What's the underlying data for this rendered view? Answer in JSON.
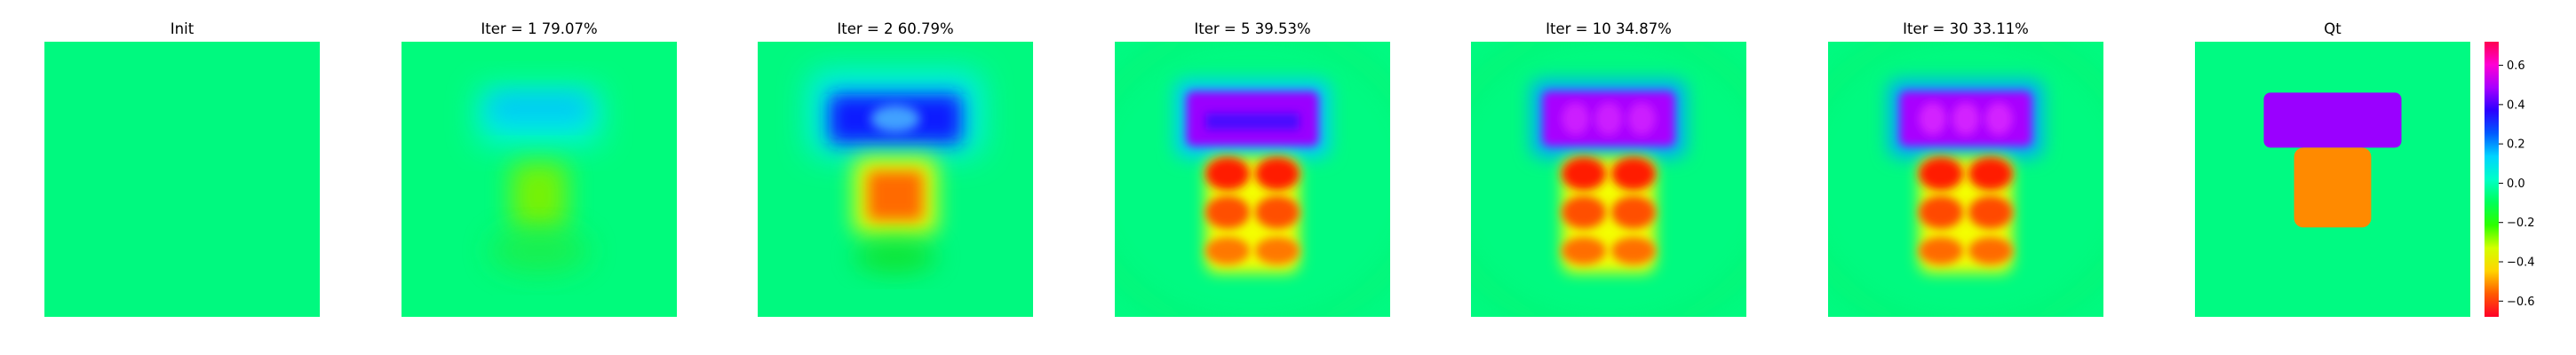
{
  "chart_data": {
    "type": "heatmap",
    "colormap": "hsv",
    "panels": [
      {
        "title": "Init",
        "background": "#00f97f",
        "blobs": []
      },
      {
        "title": "Iter = 1    79.07%",
        "background": "#00fb7c",
        "blobs": [
          {
            "kind": "rect",
            "cx": 0.5,
            "cy": 0.27,
            "w": 0.44,
            "h": 0.2,
            "fill": "#00f0ff",
            "blur": 18,
            "opacity": 0.8
          },
          {
            "kind": "rect",
            "cx": 0.5,
            "cy": 0.24,
            "w": 0.36,
            "h": 0.1,
            "fill": "#00b8ff",
            "blur": 14,
            "opacity": 0.75
          },
          {
            "kind": "rect",
            "cx": 0.5,
            "cy": 0.56,
            "w": 0.2,
            "h": 0.24,
            "fill": "#7df200",
            "blur": 14,
            "opacity": 0.95
          },
          {
            "kind": "ellipse",
            "cx": 0.5,
            "cy": 0.76,
            "rx": 0.18,
            "ry": 0.08,
            "fill": "#2be832",
            "blur": 16,
            "opacity": 0.6
          }
        ]
      },
      {
        "title": "Iter = 2    60.79%",
        "background": "#00f97f",
        "blobs": [
          {
            "kind": "rect",
            "cx": 0.5,
            "cy": 0.26,
            "w": 0.62,
            "h": 0.3,
            "fill": "#00e8ff",
            "blur": 18,
            "opacity": 0.9
          },
          {
            "kind": "rect",
            "cx": 0.5,
            "cy": 0.28,
            "w": 0.48,
            "h": 0.18,
            "fill": "#0c1cff",
            "blur": 10,
            "opacity": 1
          },
          {
            "kind": "ellipse",
            "cx": 0.5,
            "cy": 0.28,
            "rx": 0.09,
            "ry": 0.05,
            "fill": "#46b0ff",
            "blur": 6,
            "opacity": 0.9
          },
          {
            "kind": "rect",
            "cx": 0.5,
            "cy": 0.56,
            "w": 0.3,
            "h": 0.28,
            "fill": "#e8ff00",
            "blur": 12,
            "opacity": 1
          },
          {
            "kind": "rect",
            "cx": 0.5,
            "cy": 0.56,
            "w": 0.2,
            "h": 0.18,
            "fill": "#ff6a00",
            "blur": 8,
            "opacity": 1
          },
          {
            "kind": "ellipse",
            "cx": 0.5,
            "cy": 0.78,
            "rx": 0.15,
            "ry": 0.06,
            "fill": "#1cd700",
            "blur": 14,
            "opacity": 0.6
          }
        ]
      },
      {
        "title": "Iter = 5    39.53%",
        "background": "#00fa82",
        "blobs": [
          {
            "kind": "ring",
            "cx": 0.5,
            "cy": 0.5,
            "rx": 0.62,
            "ry": 0.55,
            "fill": "#18e44a",
            "blur": 14,
            "opacity": 0.35
          },
          {
            "kind": "rect",
            "cx": 0.5,
            "cy": 0.28,
            "w": 0.56,
            "h": 0.28,
            "fill": "#00c8ff",
            "blur": 10,
            "opacity": 1
          },
          {
            "kind": "rect",
            "cx": 0.5,
            "cy": 0.28,
            "w": 0.48,
            "h": 0.2,
            "fill": "#9a00ff",
            "blur": 5,
            "opacity": 1
          },
          {
            "kind": "rect",
            "cx": 0.5,
            "cy": 0.29,
            "w": 0.34,
            "h": 0.06,
            "fill": "#4010ff",
            "blur": 5,
            "opacity": 0.9
          },
          {
            "kind": "rect",
            "cx": 0.5,
            "cy": 0.63,
            "w": 0.34,
            "h": 0.42,
            "fill": "#f4ff00",
            "blur": 8,
            "opacity": 1
          },
          {
            "kind": "ellipse",
            "cx": 0.41,
            "cy": 0.48,
            "rx": 0.08,
            "ry": 0.06,
            "fill": "#ff1e00",
            "blur": 5,
            "opacity": 1
          },
          {
            "kind": "ellipse",
            "cx": 0.59,
            "cy": 0.48,
            "rx": 0.08,
            "ry": 0.06,
            "fill": "#ff1e00",
            "blur": 5,
            "opacity": 1
          },
          {
            "kind": "ellipse",
            "cx": 0.41,
            "cy": 0.62,
            "rx": 0.08,
            "ry": 0.06,
            "fill": "#ff5000",
            "blur": 5,
            "opacity": 1
          },
          {
            "kind": "ellipse",
            "cx": 0.59,
            "cy": 0.62,
            "rx": 0.08,
            "ry": 0.06,
            "fill": "#ff5000",
            "blur": 5,
            "opacity": 1
          },
          {
            "kind": "ellipse",
            "cx": 0.41,
            "cy": 0.76,
            "rx": 0.08,
            "ry": 0.05,
            "fill": "#ff7800",
            "blur": 5,
            "opacity": 1
          },
          {
            "kind": "ellipse",
            "cx": 0.59,
            "cy": 0.76,
            "rx": 0.08,
            "ry": 0.05,
            "fill": "#ff7800",
            "blur": 5,
            "opacity": 1
          }
        ]
      },
      {
        "title": "Iter = 10    34.87%",
        "background": "#00fa80",
        "blobs": [
          {
            "kind": "ring",
            "cx": 0.5,
            "cy": 0.5,
            "rx": 0.62,
            "ry": 0.55,
            "fill": "#18e44a",
            "blur": 14,
            "opacity": 0.35
          },
          {
            "kind": "rect",
            "cx": 0.5,
            "cy": 0.28,
            "w": 0.56,
            "h": 0.28,
            "fill": "#00a8ff",
            "blur": 10,
            "opacity": 1
          },
          {
            "kind": "rect",
            "cx": 0.5,
            "cy": 0.28,
            "w": 0.48,
            "h": 0.2,
            "fill": "#a800ff",
            "blur": 5,
            "opacity": 1
          },
          {
            "kind": "ellipse",
            "cx": 0.38,
            "cy": 0.28,
            "rx": 0.05,
            "ry": 0.06,
            "fill": "#d020ff",
            "blur": 5,
            "opacity": 0.9
          },
          {
            "kind": "ellipse",
            "cx": 0.5,
            "cy": 0.28,
            "rx": 0.05,
            "ry": 0.06,
            "fill": "#d020ff",
            "blur": 5,
            "opacity": 0.9
          },
          {
            "kind": "ellipse",
            "cx": 0.62,
            "cy": 0.28,
            "rx": 0.05,
            "ry": 0.06,
            "fill": "#d020ff",
            "blur": 5,
            "opacity": 0.9
          },
          {
            "kind": "rect",
            "cx": 0.5,
            "cy": 0.63,
            "w": 0.34,
            "h": 0.42,
            "fill": "#f4ff00",
            "blur": 8,
            "opacity": 1
          },
          {
            "kind": "ellipse",
            "cx": 0.41,
            "cy": 0.48,
            "rx": 0.08,
            "ry": 0.06,
            "fill": "#ff1e00",
            "blur": 5,
            "opacity": 1
          },
          {
            "kind": "ellipse",
            "cx": 0.59,
            "cy": 0.48,
            "rx": 0.08,
            "ry": 0.06,
            "fill": "#ff1e00",
            "blur": 5,
            "opacity": 1
          },
          {
            "kind": "ellipse",
            "cx": 0.41,
            "cy": 0.62,
            "rx": 0.08,
            "ry": 0.06,
            "fill": "#ff5000",
            "blur": 5,
            "opacity": 1
          },
          {
            "kind": "ellipse",
            "cx": 0.59,
            "cy": 0.62,
            "rx": 0.08,
            "ry": 0.06,
            "fill": "#ff5000",
            "blur": 5,
            "opacity": 1
          },
          {
            "kind": "ellipse",
            "cx": 0.41,
            "cy": 0.76,
            "rx": 0.08,
            "ry": 0.05,
            "fill": "#ff6e00",
            "blur": 5,
            "opacity": 1
          },
          {
            "kind": "ellipse",
            "cx": 0.59,
            "cy": 0.76,
            "rx": 0.08,
            "ry": 0.05,
            "fill": "#ff6e00",
            "blur": 5,
            "opacity": 1
          }
        ]
      },
      {
        "title": "Iter = 30    33.11%",
        "background": "#00fa80",
        "blobs": [
          {
            "kind": "ring",
            "cx": 0.5,
            "cy": 0.5,
            "rx": 0.62,
            "ry": 0.55,
            "fill": "#18e44a",
            "blur": 14,
            "opacity": 0.35
          },
          {
            "kind": "rect",
            "cx": 0.5,
            "cy": 0.28,
            "w": 0.56,
            "h": 0.28,
            "fill": "#00a8ff",
            "blur": 10,
            "opacity": 1
          },
          {
            "kind": "rect",
            "cx": 0.5,
            "cy": 0.28,
            "w": 0.48,
            "h": 0.2,
            "fill": "#a800ff",
            "blur": 5,
            "opacity": 1
          },
          {
            "kind": "ellipse",
            "cx": 0.38,
            "cy": 0.28,
            "rx": 0.05,
            "ry": 0.06,
            "fill": "#d828ff",
            "blur": 5,
            "opacity": 0.9
          },
          {
            "kind": "ellipse",
            "cx": 0.5,
            "cy": 0.28,
            "rx": 0.05,
            "ry": 0.06,
            "fill": "#d828ff",
            "blur": 5,
            "opacity": 0.9
          },
          {
            "kind": "ellipse",
            "cx": 0.62,
            "cy": 0.28,
            "rx": 0.05,
            "ry": 0.06,
            "fill": "#d828ff",
            "blur": 5,
            "opacity": 0.9
          },
          {
            "kind": "rect",
            "cx": 0.5,
            "cy": 0.63,
            "w": 0.34,
            "h": 0.42,
            "fill": "#f4ff00",
            "blur": 8,
            "opacity": 1
          },
          {
            "kind": "ellipse",
            "cx": 0.41,
            "cy": 0.48,
            "rx": 0.08,
            "ry": 0.06,
            "fill": "#ff1e00",
            "blur": 5,
            "opacity": 1
          },
          {
            "kind": "ellipse",
            "cx": 0.59,
            "cy": 0.48,
            "rx": 0.08,
            "ry": 0.06,
            "fill": "#ff1e00",
            "blur": 5,
            "opacity": 1
          },
          {
            "kind": "ellipse",
            "cx": 0.41,
            "cy": 0.62,
            "rx": 0.08,
            "ry": 0.06,
            "fill": "#ff4a00",
            "blur": 5,
            "opacity": 1
          },
          {
            "kind": "ellipse",
            "cx": 0.59,
            "cy": 0.62,
            "rx": 0.08,
            "ry": 0.06,
            "fill": "#ff4a00",
            "blur": 5,
            "opacity": 1
          },
          {
            "kind": "ellipse",
            "cx": 0.41,
            "cy": 0.76,
            "rx": 0.08,
            "ry": 0.05,
            "fill": "#ff6a00",
            "blur": 5,
            "opacity": 1
          },
          {
            "kind": "ellipse",
            "cx": 0.59,
            "cy": 0.76,
            "rx": 0.08,
            "ry": 0.05,
            "fill": "#ff6a00",
            "blur": 5,
            "opacity": 1
          }
        ]
      },
      {
        "title": "Qt",
        "background": "#00fa82",
        "blobs": [
          {
            "kind": "rect",
            "cx": 0.5,
            "cy": 0.285,
            "w": 0.5,
            "h": 0.2,
            "fill": "#9a00ff",
            "blur": 0,
            "opacity": 1
          },
          {
            "kind": "rect",
            "cx": 0.5,
            "cy": 0.53,
            "w": 0.28,
            "h": 0.29,
            "fill": "#ff8a00",
            "blur": 0,
            "opacity": 1
          }
        ]
      }
    ],
    "colorbar": {
      "vmin": -0.68,
      "vmax": 0.72,
      "ticks": [
        0.6,
        0.4,
        0.2,
        0.0,
        -0.2,
        -0.4,
        -0.6
      ],
      "tick_labels": [
        "0.6",
        "0.4",
        "0.2",
        "0.0",
        "−0.2",
        "−0.4",
        "−0.6"
      ],
      "stops": [
        "#ff0028",
        "#ff5a00",
        "#ffd400",
        "#d4ff00",
        "#2bff00",
        "#00ff5a",
        "#00ffc8",
        "#00d4ff",
        "#005aff",
        "#2b00ff",
        "#a800ff",
        "#ff00d4",
        "#ff0050"
      ]
    }
  }
}
